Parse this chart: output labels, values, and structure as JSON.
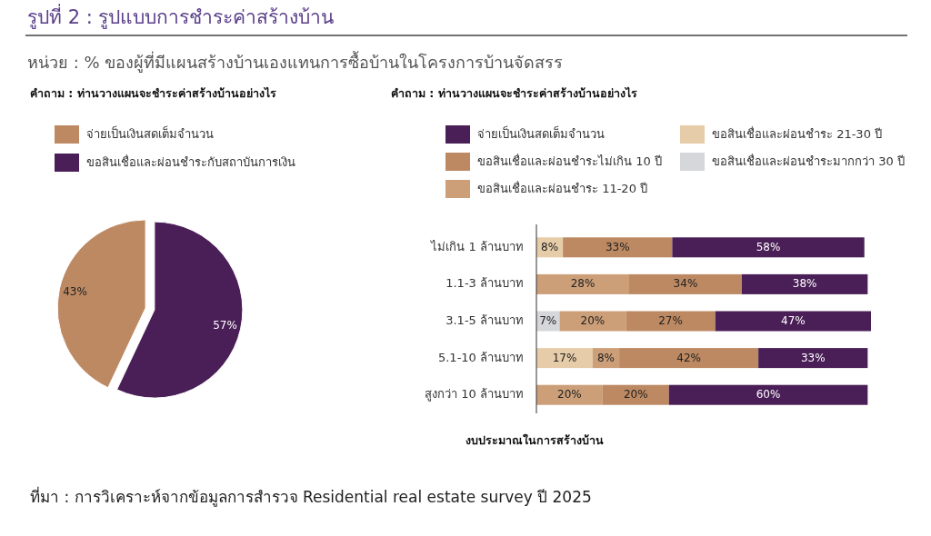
{
  "chart_data": [
    {
      "type": "pie",
      "title": "รูปที่ 2 : รูปแบบการชำระค่าสร้างบ้าน",
      "subtitle": "หน่วย : % ของผู้ที่มีแผนสร้างบ้านเองแทนการซื้อบ้านในโครงการบ้านจัดสรร",
      "annotations": [
        "คำถาม : ท่านวางแผนจะชำระค่าสร้างบ้านอย่างไร",
        "ที่มา : การวิเคราะห์จากข้อมูลการสำรวจ Residential real estate survey ปี 2025"
      ],
      "categories": [
        "จ่ายเป็นเงินสดเต็มจำนวน",
        "ขอสินเชื่อและผ่อนชำระกับสถาบันการเงิน"
      ],
      "values": [
        43,
        57
      ],
      "value_labels": [
        "43%",
        "57%"
      ],
      "colors": [
        "#bd8962",
        "#4a1f57"
      ],
      "legend": "top"
    },
    {
      "type": "bar",
      "orientation": "horizontal",
      "stacked": true,
      "title": "คำถาม : ท่านวางแผนจะชำระค่าสร้างบ้านอย่างไร",
      "ylabel": "งบประมาณในการสร้างบ้าน",
      "categories": [
        "ไม่เกิน 1 ล้านบาท",
        "1.1-3 ล้านบาท",
        "3.1-5 ล้านบาท",
        "5.1-10 ล้านบาท",
        "สูงกว่า 10 ล้านบาท"
      ],
      "series": [
        {
          "name": "ขอสินเชื่อและผ่อนชำระมากกว่า 30 ปี",
          "color": "#d6d7db",
          "values": [
            null,
            null,
            7,
            null,
            null
          ],
          "value_labels": [
            null,
            null,
            "7%",
            null,
            null
          ]
        },
        {
          "name": "ขอสินเชื่อและผ่อนชำระ 21-30 ปี",
          "color": "#e6cca9",
          "values": [
            8,
            null,
            null,
            17,
            null
          ],
          "value_labels": [
            "8%",
            null,
            null,
            "17%",
            null
          ]
        },
        {
          "name": "ขอสินเชื่อและผ่อนชำระ 11-20 ปี",
          "color": "#cc9f78",
          "values": [
            null,
            28,
            20,
            8,
            20
          ],
          "value_labels": [
            null,
            "28%",
            "20%",
            "8%",
            "20%"
          ]
        },
        {
          "name": "ขอสินเชื่อและผ่อนชำระไม่เกิน 10 ปี",
          "color": "#bd8962",
          "values": [
            33,
            34,
            27,
            42,
            20
          ],
          "value_labels": [
            "33%",
            "34%",
            "27%",
            "42%",
            "20%"
          ]
        },
        {
          "name": "จ่ายเป็นเงินสดเต็มจำนวน",
          "color": "#4a1f57",
          "values": [
            58,
            38,
            47,
            33,
            60
          ],
          "value_labels": [
            "58%",
            "38%",
            "47%",
            "33%",
            "60%"
          ]
        }
      ],
      "legend": "top"
    }
  ]
}
